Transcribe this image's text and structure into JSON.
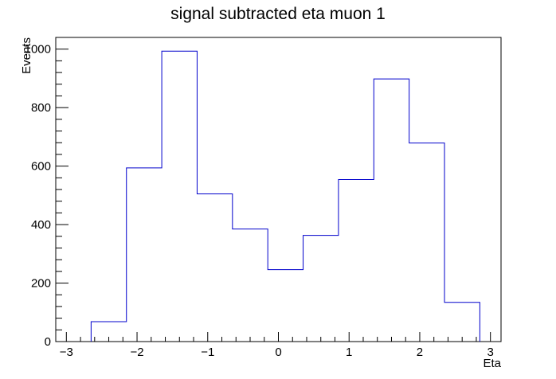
{
  "chart_data": {
    "type": "bar",
    "title": "signal subtracted eta muon 1",
    "xlabel": "Eta",
    "ylabel": "Events",
    "xlim": [
      -3.15,
      3.15
    ],
    "ylim": [
      0,
      1040
    ],
    "x_ticks": [
      -3,
      -2,
      -1,
      0,
      1,
      2,
      3
    ],
    "x_tick_labels": [
      "−3",
      "−2",
      "−1",
      "0",
      "1",
      "2",
      "3"
    ],
    "y_ticks": [
      0,
      200,
      400,
      600,
      800,
      1000
    ],
    "y_tick_labels": [
      "0",
      "200",
      "400",
      "600",
      "800",
      "1000"
    ],
    "bin_edges": [
      -3.15,
      -2.65,
      -2.15,
      -1.65,
      -1.15,
      -0.65,
      -0.15,
      0.35,
      0.85,
      1.35,
      1.85,
      2.35,
      2.85,
      3.15
    ],
    "values": [
      0,
      68,
      594,
      993,
      505,
      385,
      246,
      363,
      554,
      898,
      679,
      134,
      0
    ],
    "line_color": "#0000cc",
    "grid": false,
    "legend": "none"
  }
}
